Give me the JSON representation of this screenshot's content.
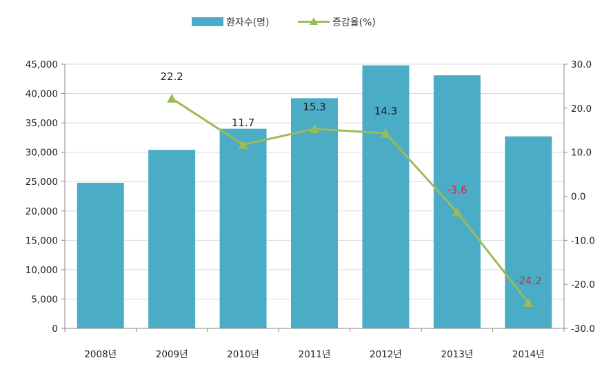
{
  "chart_data": {
    "type": "bar",
    "categories": [
      "2008년",
      "2009년",
      "2010년",
      "2011년",
      "2012년",
      "2013년",
      "2014년"
    ],
    "series": [
      {
        "name": "환자수(명)",
        "type": "bar",
        "axis": "left",
        "color": "#4bacc6",
        "values": [
          24800,
          30400,
          34000,
          39200,
          44800,
          43100,
          32700
        ]
      },
      {
        "name": "증감율(%)",
        "type": "line",
        "axis": "right",
        "color": "#9bbb59",
        "marker": "triangle",
        "values": [
          null,
          22.2,
          11.7,
          15.3,
          14.3,
          -3.6,
          -24.2
        ],
        "labels": [
          "",
          "22.2",
          "11.7",
          "15.3",
          "14.3",
          "-3.6",
          "-24.2"
        ],
        "label_colors": [
          "#222222",
          "#222222",
          "#222222",
          "#222222",
          "#222222",
          "#e8203a",
          "#e8203a"
        ]
      }
    ],
    "y_left": {
      "lim": [
        0,
        45000
      ],
      "ticks": [
        0,
        5000,
        10000,
        15000,
        20000,
        25000,
        30000,
        35000,
        40000,
        45000
      ],
      "tick_labels": [
        "0",
        "5,000",
        "10,000",
        "15,000",
        "20,000",
        "25,000",
        "30,000",
        "35,000",
        "40,000",
        "45,000"
      ]
    },
    "y_right": {
      "lim": [
        -30,
        30
      ],
      "ticks": [
        -30,
        -20,
        -10,
        0,
        10,
        20,
        30
      ],
      "tick_labels": [
        "-30.0",
        "-20.0",
        "-10.0",
        "0.0",
        "10.0",
        "20.0",
        "30.0"
      ]
    },
    "grid": "horizontal",
    "legend": "top-center"
  }
}
